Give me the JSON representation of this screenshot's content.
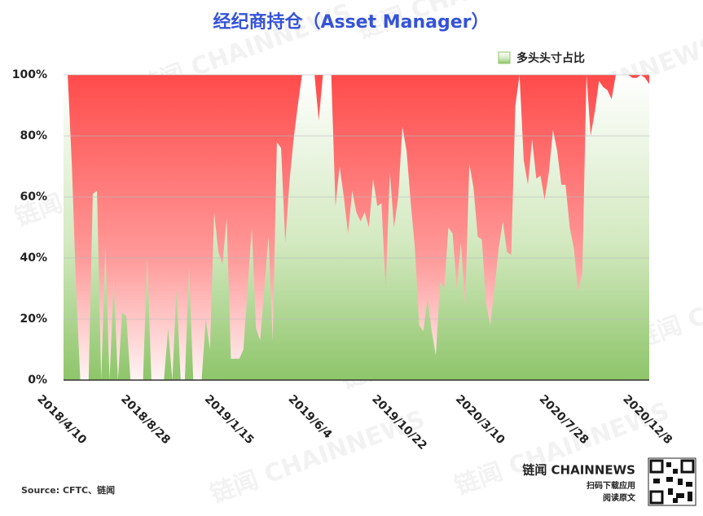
{
  "chart_data": {
    "type": "area",
    "title": "经纪商持仓（Asset Manager）",
    "categories": [
      "2018/4/10",
      null,
      null,
      null,
      null,
      null,
      null,
      null,
      null,
      null,
      null,
      null,
      null,
      null,
      null,
      null,
      null,
      null,
      null,
      null,
      "2018/8/28",
      null,
      null,
      null,
      null,
      null,
      null,
      null,
      null,
      null,
      null,
      null,
      null,
      null,
      null,
      null,
      null,
      null,
      null,
      null,
      "2019/1/15",
      null,
      null,
      null,
      null,
      null,
      null,
      null,
      null,
      null,
      null,
      null,
      null,
      null,
      null,
      null,
      null,
      null,
      null,
      null,
      "2019/6/4",
      null,
      null,
      null,
      null,
      null,
      null,
      null,
      null,
      null,
      null,
      null,
      null,
      null,
      null,
      null,
      null,
      null,
      null,
      null,
      "2019/10/22",
      null,
      null,
      null,
      null,
      null,
      null,
      null,
      null,
      null,
      null,
      null,
      null,
      null,
      null,
      null,
      null,
      null,
      null,
      null,
      "2020/3/10",
      null,
      null,
      null,
      null,
      null,
      null,
      null,
      null,
      null,
      null,
      null,
      null,
      null,
      null,
      null,
      null,
      null,
      null,
      null,
      "2020/7/28",
      null,
      null,
      null,
      null,
      null,
      null,
      null,
      null,
      null,
      null,
      null,
      null,
      null,
      null,
      null,
      null,
      null,
      null,
      null,
      "2020/12/8"
    ],
    "series": [
      {
        "name": "多头头寸占比",
        "color": "#8ec56a",
        "values": [
          100,
          100,
          70,
          30,
          0,
          0,
          0,
          61,
          62,
          0,
          44,
          0,
          33,
          0,
          22,
          21,
          0,
          0,
          0,
          0,
          40,
          0,
          0,
          0,
          0,
          17,
          0,
          30,
          0,
          0,
          37,
          0,
          0,
          0,
          20,
          10,
          55,
          42,
          38,
          53,
          7,
          7,
          7,
          10,
          30,
          50,
          17,
          13,
          30,
          47,
          13,
          78,
          76,
          45,
          65,
          79,
          90,
          100,
          100,
          100,
          100,
          85,
          100,
          100,
          100,
          57,
          70,
          60,
          48,
          62,
          55,
          52,
          55,
          50,
          66,
          57,
          58,
          30,
          68,
          50,
          60,
          83,
          75,
          58,
          43,
          18,
          16,
          27,
          16,
          8,
          32,
          30,
          50,
          48,
          30,
          45,
          24,
          71,
          63,
          47,
          46,
          25,
          18,
          30,
          43,
          52,
          42,
          41,
          90,
          100,
          72,
          64,
          79,
          66,
          67,
          59,
          68,
          82,
          75,
          64,
          64,
          50,
          43,
          29,
          35,
          100,
          80,
          88,
          98,
          96,
          95,
          92,
          100,
          100,
          100,
          100,
          99,
          99,
          100,
          99,
          97
        ]
      }
    ],
    "background_color": "#ff4b4b",
    "ylim": [
      0,
      100
    ],
    "yticks": [
      {
        "value": 0,
        "label": "0%"
      },
      {
        "value": 20,
        "label": "20%"
      },
      {
        "value": 40,
        "label": "40%"
      },
      {
        "value": 60,
        "label": "60%"
      },
      {
        "value": 80,
        "label": "80%"
      },
      {
        "value": 100,
        "label": "100%"
      }
    ],
    "grid": true,
    "legend": "top-right",
    "source": "Source: CFTC、链闻",
    "watermark": "链闻 CHAINNEWS",
    "brand": "链闻 CHAINNEWS",
    "brand_lines": [
      "扫码下载应用",
      "阅读原文"
    ]
  }
}
